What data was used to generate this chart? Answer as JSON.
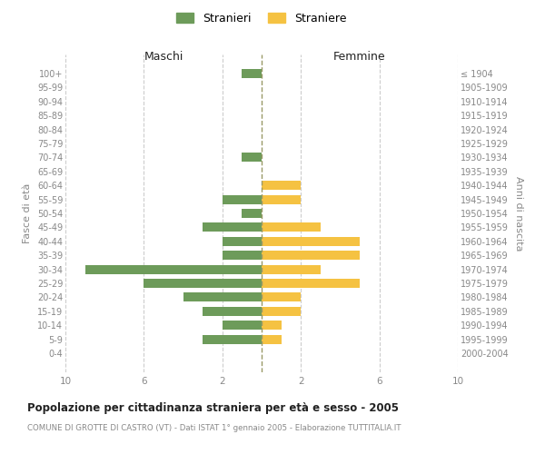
{
  "age_groups": [
    "0-4",
    "5-9",
    "10-14",
    "15-19",
    "20-24",
    "25-29",
    "30-34",
    "35-39",
    "40-44",
    "45-49",
    "50-54",
    "55-59",
    "60-64",
    "65-69",
    "70-74",
    "75-79",
    "80-84",
    "85-89",
    "90-94",
    "95-99",
    "100+"
  ],
  "birth_years": [
    "2000-2004",
    "1995-1999",
    "1990-1994",
    "1985-1989",
    "1980-1984",
    "1975-1979",
    "1970-1974",
    "1965-1969",
    "1960-1964",
    "1955-1959",
    "1950-1954",
    "1945-1949",
    "1940-1944",
    "1935-1939",
    "1930-1934",
    "1925-1929",
    "1920-1924",
    "1915-1919",
    "1910-1914",
    "1905-1909",
    "≤ 1904"
  ],
  "maschi": [
    0,
    3,
    2,
    3,
    4,
    6,
    9,
    2,
    2,
    3,
    1,
    2,
    0,
    0,
    1,
    0,
    0,
    0,
    0,
    0,
    1
  ],
  "femmine": [
    0,
    1,
    1,
    2,
    2,
    5,
    3,
    5,
    5,
    3,
    0,
    2,
    2,
    0,
    0,
    0,
    0,
    0,
    0,
    0,
    0
  ],
  "maschi_color": "#6d9b5a",
  "femmine_color": "#f5c242",
  "title": "Popolazione per cittadinanza straniera per età e sesso - 2005",
  "subtitle": "COMUNE DI GROTTE DI CASTRO (VT) - Dati ISTAT 1° gennaio 2005 - Elaborazione TUTTITALIA.IT",
  "ylabel_left": "Fasce di età",
  "ylabel_right": "Anni di nascita",
  "xlabel_left": "Maschi",
  "xlabel_right": "Femmine",
  "legend_stranieri": "Stranieri",
  "legend_straniere": "Straniere",
  "xmax": 10,
  "background_color": "#ffffff",
  "grid_color": "#cccccc",
  "label_color": "#888888",
  "title_color": "#222222",
  "subtitle_color": "#888888"
}
